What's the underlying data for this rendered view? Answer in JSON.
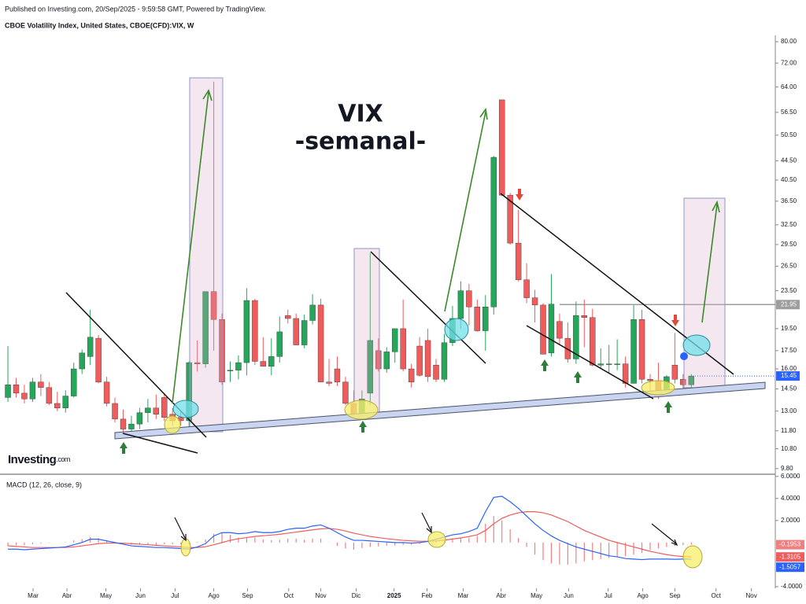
{
  "header": {
    "published": "Published on Investing.com, 20/Sep/2025 - 9:59:58 GMT, Powered by TradingView.",
    "symbol": "CBOE Volatility Index, United States, CBOE(CFD):VIX, W"
  },
  "logo": {
    "name": "Investing",
    "suffix": ".com"
  },
  "chart_data": [
    {
      "type": "candlestick",
      "title": "VIX",
      "subtitle": "-semanal-",
      "log_scale": true,
      "up_color": "#26a65b",
      "down_color": "#f05b5b",
      "candles": [
        [
          13.9,
          17.9,
          13.6,
          14.8
        ],
        [
          14.8,
          15.3,
          13.9,
          14.2
        ],
        [
          14.2,
          14.8,
          13.5,
          13.8
        ],
        [
          13.8,
          15.3,
          13.6,
          15.0
        ],
        [
          15.0,
          15.6,
          14.0,
          14.6
        ],
        [
          14.6,
          15.0,
          13.4,
          13.5
        ],
        [
          13.5,
          14.3,
          13.0,
          13.2
        ],
        [
          13.2,
          14.4,
          12.9,
          14.0
        ],
        [
          14.0,
          16.5,
          13.9,
          16.0
        ],
        [
          16.0,
          17.6,
          15.6,
          17.3
        ],
        [
          17.0,
          21.4,
          16.3,
          18.7
        ],
        [
          18.6,
          18.9,
          14.9,
          15.0
        ],
        [
          15.0,
          15.4,
          13.3,
          13.5
        ],
        [
          13.5,
          13.9,
          12.3,
          12.5
        ],
        [
          12.5,
          13.1,
          11.5,
          11.9
        ],
        [
          11.9,
          12.7,
          11.6,
          12.2
        ],
        [
          12.2,
          13.2,
          11.9,
          12.9
        ],
        [
          12.9,
          13.8,
          12.3,
          13.2
        ],
        [
          13.2,
          14.1,
          12.5,
          12.8
        ],
        [
          13.9,
          14.2,
          12.4,
          12.6
        ],
        [
          12.8,
          13.2,
          12.1,
          12.4
        ],
        [
          12.6,
          13.0,
          12.1,
          12.4
        ],
        [
          12.4,
          16.6,
          12.0,
          16.5
        ],
        [
          16.5,
          18.4,
          15.8,
          16.4
        ],
        [
          16.4,
          23.4,
          16.1,
          23.4
        ],
        [
          23.4,
          65.7,
          17.5,
          20.4
        ],
        [
          20.4,
          21.0,
          14.8,
          15.0
        ],
        [
          15.9,
          16.6,
          15.0,
          15.9
        ],
        [
          15.9,
          17.1,
          15.2,
          16.5
        ],
        [
          16.5,
          23.8,
          15.5,
          22.4
        ],
        [
          22.4,
          22.6,
          16.3,
          16.6
        ],
        [
          16.6,
          18.7,
          16.2,
          16.2
        ],
        [
          16.2,
          18.6,
          15.5,
          17.0
        ],
        [
          17.0,
          20.7,
          16.5,
          19.2
        ],
        [
          20.8,
          21.4,
          20.0,
          20.5
        ],
        [
          20.5,
          21.0,
          18.0,
          18.0
        ],
        [
          18.0,
          20.9,
          17.7,
          20.3
        ],
        [
          20.3,
          23.1,
          19.9,
          21.9
        ],
        [
          21.9,
          22.6,
          15.0,
          15.0
        ],
        [
          15.0,
          16.8,
          14.7,
          14.9
        ],
        [
          16.0,
          17.0,
          14.7,
          15.0
        ],
        [
          15.0,
          15.4,
          13.4,
          13.5
        ],
        [
          13.5,
          14.4,
          12.7,
          12.8
        ],
        [
          12.8,
          14.4,
          12.5,
          13.8
        ],
        [
          14.2,
          28.3,
          13.4,
          18.4
        ],
        [
          17.5,
          18.6,
          15.8,
          16.0
        ],
        [
          16.0,
          17.8,
          15.7,
          17.4
        ],
        [
          17.4,
          19.5,
          16.5,
          19.5
        ],
        [
          19.5,
          22.5,
          15.8,
          16.0
        ],
        [
          16.0,
          16.4,
          14.6,
          15.0
        ],
        [
          17.9,
          18.7,
          15.4,
          15.5
        ],
        [
          18.4,
          19.5,
          15.0,
          15.4
        ],
        [
          16.3,
          16.8,
          15.0,
          15.2
        ],
        [
          15.2,
          19.0,
          15.0,
          18.2
        ],
        [
          18.2,
          21.8,
          17.9,
          20.5
        ],
        [
          20.5,
          24.6,
          19.5,
          23.5
        ],
        [
          23.5,
          24.3,
          19.8,
          21.7
        ],
        [
          21.7,
          22.5,
          19.2,
          19.3
        ],
        [
          19.3,
          23.0,
          17.5,
          21.7
        ],
        [
          21.7,
          45.6,
          20.9,
          45.3
        ],
        [
          60.1,
          60.1,
          37.4,
          37.6
        ],
        [
          37.6,
          38.0,
          29.5,
          29.7
        ],
        [
          29.7,
          35.0,
          24.6,
          24.8
        ],
        [
          24.8,
          26.9,
          22.1,
          22.7
        ],
        [
          22.7,
          23.6,
          20.1,
          21.9
        ],
        [
          21.9,
          22.1,
          17.2,
          17.2
        ],
        [
          17.3,
          25.5,
          17.0,
          22.0
        ],
        [
          20.2,
          21.0,
          18.0,
          18.6
        ],
        [
          18.6,
          20.1,
          16.5,
          16.8
        ],
        [
          16.8,
          22.3,
          16.4,
          20.8
        ],
        [
          20.8,
          22.5,
          17.8,
          20.6
        ],
        [
          20.6,
          21.5,
          16.2,
          16.3
        ],
        [
          16.3,
          17.7,
          16.0,
          16.4
        ],
        [
          16.4,
          18.0,
          15.7,
          16.4
        ],
        [
          16.4,
          18.5,
          15.9,
          16.4
        ],
        [
          16.4,
          17.0,
          14.6,
          14.9
        ],
        [
          14.9,
          21.9,
          14.9,
          20.4
        ],
        [
          20.4,
          21.4,
          14.9,
          15.2
        ],
        [
          15.2,
          15.6,
          14.0,
          15.1
        ],
        [
          15.1,
          16.5,
          13.8,
          14.2
        ],
        [
          14.2,
          15.5,
          14.0,
          15.4
        ],
        [
          16.3,
          19.1,
          14.9,
          15.2
        ],
        [
          15.2,
          15.6,
          14.4,
          14.8
        ],
        [
          14.8,
          15.6,
          14.6,
          15.45
        ]
      ],
      "ylim": [
        9.53,
        82.5
      ],
      "yticks": [
        {
          "value": 9.8,
          "label": "9.80"
        },
        {
          "value": 10.8,
          "label": "10.80"
        },
        {
          "value": 11.8,
          "label": "11.80"
        },
        {
          "value": 13,
          "label": "13.00"
        },
        {
          "value": 14.5,
          "label": "14.50"
        },
        {
          "value": 16,
          "label": "16.00"
        },
        {
          "value": 17.5,
          "label": "17.50"
        },
        {
          "value": 19.5,
          "label": "19.50"
        },
        {
          "value": 23.5,
          "label": "23.50"
        },
        {
          "value": 26.5,
          "label": "26.50"
        },
        {
          "value": 29.5,
          "label": "29.50"
        },
        {
          "value": 32.5,
          "label": "32.50"
        },
        {
          "value": 36.5,
          "label": "36.50"
        },
        {
          "value": 40.5,
          "label": "40.50"
        },
        {
          "value": 44.5,
          "label": "44.50"
        },
        {
          "value": 50.5,
          "label": "50.50"
        },
        {
          "value": 56.5,
          "label": "56.50"
        },
        {
          "value": 64,
          "label": "64.00"
        },
        {
          "value": 72,
          "label": "72.00"
        },
        {
          "value": 80,
          "label": "80.00"
        }
      ],
      "xlim": [
        -0.96,
        93.2
      ],
      "xticks": [
        {
          "value": 3.06,
          "label": "Mar"
        },
        {
          "value": 7.17,
          "label": "Abr"
        },
        {
          "value": 11.9,
          "label": "May"
        },
        {
          "value": 16.1,
          "label": "Jun"
        },
        {
          "value": 20.3,
          "label": "Jul"
        },
        {
          "value": 25.0,
          "label": "Ago"
        },
        {
          "value": 29.1,
          "label": "Sep"
        },
        {
          "value": 34.1,
          "label": "Oct"
        },
        {
          "value": 38.0,
          "label": "Nov"
        },
        {
          "value": 42.3,
          "label": "Dic"
        },
        {
          "value": 46.9,
          "label": "2025"
        },
        {
          "value": 50.9,
          "label": "Feb"
        },
        {
          "value": 55.3,
          "label": "Mar"
        },
        {
          "value": 59.9,
          "label": "Abr"
        },
        {
          "value": 64.2,
          "label": "May"
        },
        {
          "value": 68.1,
          "label": "Jun"
        },
        {
          "value": 72.9,
          "label": "Jul"
        },
        {
          "value": 77.1,
          "label": "Ago"
        },
        {
          "value": 81.0,
          "label": "Sep"
        },
        {
          "value": 86.0,
          "label": "Oct"
        },
        {
          "value": 90.3,
          "label": "Nov"
        }
      ],
      "reference_line": {
        "value": 21.95,
        "label": "21.95",
        "color": "#9e9e9e"
      },
      "last_price": {
        "value": 15.45,
        "label": "15.45",
        "color": "#2962ff"
      }
    },
    {
      "type": "macd",
      "title": "MACD (12, 26, close, 9)",
      "ylim": [
        -4.15,
        6.2
      ],
      "yticks": [
        {
          "value": 6,
          "label": "6.0000"
        },
        {
          "value": 4,
          "label": "4.0000"
        },
        {
          "value": 2,
          "label": "2.0000"
        },
        {
          "value": -4,
          "label": "-4.0000"
        }
      ],
      "histogram": {
        "color": "#f08080",
        "last_label": "-0.1953",
        "values": [
          -0.3,
          -0.25,
          -0.25,
          -0.15,
          -0.1,
          -0.05,
          0,
          0.04,
          0.2,
          0.3,
          0.5,
          0.4,
          0.2,
          0.04,
          -0.09,
          -0.2,
          -0.2,
          -0.2,
          -0.2,
          -0.15,
          -0.15,
          -0.15,
          -0.15,
          0.05,
          0.28,
          0.8,
          0.9,
          0.7,
          0.45,
          0.4,
          0.45,
          0.28,
          0.22,
          0.25,
          0.35,
          0.35,
          0.25,
          0.35,
          0.35,
          0.02,
          -0.3,
          -0.55,
          -0.65,
          -0.5,
          -0.4,
          -0.35,
          -0.3,
          -0.27,
          -0.2,
          -0.2,
          -0.12,
          -0.02,
          0.15,
          0.28,
          0.38,
          0.38,
          0.45,
          0.6,
          1.7,
          2.4,
          2.0,
          1.2,
          0.4,
          -0.4,
          -1.1,
          -1.6,
          -1.9,
          -2.0,
          -2.0,
          -1.9,
          -1.7,
          -1.6,
          -1.5,
          -1.4,
          -1.3,
          -1.25,
          -1.1,
          -0.95,
          -0.7,
          -0.55,
          -0.4,
          -0.32,
          -0.23,
          -0.1953
        ]
      },
      "series": [
        {
          "color": "#f05b5b",
          "last_label": "-1.3105",
          "values": [
            -0.3,
            -0.35,
            -0.4,
            -0.45,
            -0.45,
            -0.45,
            -0.45,
            -0.44,
            -0.4,
            -0.3,
            -0.2,
            -0.1,
            -0.05,
            -0.04,
            -0.06,
            -0.1,
            -0.15,
            -0.2,
            -0.25,
            -0.3,
            -0.35,
            -0.4,
            -0.45,
            -0.45,
            -0.38,
            -0.2,
            0.0,
            0.2,
            0.35,
            0.45,
            0.55,
            0.62,
            0.68,
            0.75,
            0.85,
            0.95,
            1.05,
            1.15,
            1.25,
            1.28,
            1.2,
            1.05,
            0.85,
            0.7,
            0.55,
            0.45,
            0.35,
            0.27,
            0.2,
            0.15,
            0.12,
            0.12,
            0.15,
            0.22,
            0.32,
            0.42,
            0.55,
            0.7,
            1.1,
            1.7,
            2.2,
            2.5,
            2.7,
            2.8,
            2.8,
            2.7,
            2.5,
            2.2,
            1.9,
            1.5,
            1.1,
            0.8,
            0.5,
            0.2,
            0.0,
            -0.2,
            -0.4,
            -0.6,
            -0.8,
            -0.95,
            -1.1,
            -1.2,
            -1.27,
            -1.3105
          ]
        },
        {
          "color": "#2962ff",
          "last_label": "-1.5057",
          "values": [
            -0.6,
            -0.6,
            -0.65,
            -0.6,
            -0.55,
            -0.5,
            -0.45,
            -0.4,
            -0.2,
            0.0,
            0.3,
            0.3,
            0.15,
            0.0,
            -0.15,
            -0.3,
            -0.35,
            -0.4,
            -0.45,
            -0.45,
            -0.5,
            -0.55,
            -0.6,
            -0.4,
            -0.1,
            0.6,
            0.9,
            0.9,
            0.8,
            0.85,
            1.0,
            0.9,
            0.9,
            1.0,
            1.2,
            1.3,
            1.3,
            1.5,
            1.6,
            1.3,
            0.9,
            0.5,
            0.2,
            0.2,
            0.15,
            0.1,
            0.05,
            0.0,
            0.0,
            -0.05,
            0.0,
            0.1,
            0.3,
            0.5,
            0.7,
            0.8,
            1.0,
            1.3,
            2.8,
            4.1,
            4.2,
            3.7,
            3.1,
            2.4,
            1.7,
            1.1,
            0.6,
            0.2,
            -0.1,
            -0.4,
            -0.6,
            -0.8,
            -1.0,
            -1.2,
            -1.3,
            -1.45,
            -1.5,
            -1.55,
            -1.5,
            -1.5,
            -1.5,
            -1.52,
            -1.5,
            -1.5057
          ]
        }
      ]
    }
  ]
}
